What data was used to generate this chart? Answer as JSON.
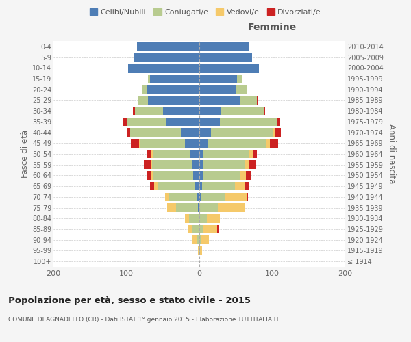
{
  "age_groups": [
    "100+",
    "95-99",
    "90-94",
    "85-89",
    "80-84",
    "75-79",
    "70-74",
    "65-69",
    "60-64",
    "55-59",
    "50-54",
    "45-49",
    "40-44",
    "35-39",
    "30-34",
    "25-29",
    "20-24",
    "15-19",
    "10-14",
    "5-9",
    "0-4"
  ],
  "birth_years": [
    "≤ 1914",
    "1915-1919",
    "1920-1924",
    "1925-1929",
    "1930-1934",
    "1935-1939",
    "1940-1944",
    "1945-1949",
    "1950-1954",
    "1955-1959",
    "1960-1964",
    "1965-1969",
    "1970-1974",
    "1975-1979",
    "1980-1984",
    "1985-1989",
    "1990-1994",
    "1995-1999",
    "2000-2004",
    "2005-2009",
    "2010-2014"
  ],
  "male": {
    "celibi": [
      0,
      0,
      0,
      0,
      0,
      2,
      3,
      7,
      8,
      10,
      12,
      20,
      25,
      45,
      50,
      70,
      72,
      68,
      98,
      90,
      85
    ],
    "coniugati": [
      0,
      1,
      4,
      9,
      14,
      30,
      38,
      50,
      55,
      55,
      52,
      62,
      70,
      55,
      38,
      14,
      7,
      2,
      0,
      0,
      0
    ],
    "vedovi": [
      0,
      1,
      5,
      7,
      6,
      12,
      6,
      5,
      3,
      2,
      2,
      1,
      0,
      0,
      0,
      0,
      0,
      0,
      0,
      0,
      0
    ],
    "divorziati": [
      0,
      0,
      0,
      0,
      0,
      0,
      0,
      6,
      6,
      9,
      6,
      11,
      5,
      5,
      3,
      0,
      0,
      0,
      0,
      0,
      0
    ]
  },
  "female": {
    "nubili": [
      0,
      0,
      0,
      0,
      0,
      0,
      2,
      4,
      5,
      5,
      6,
      12,
      16,
      28,
      30,
      55,
      50,
      52,
      82,
      72,
      68
    ],
    "coniugate": [
      0,
      1,
      3,
      6,
      10,
      25,
      33,
      45,
      50,
      58,
      62,
      80,
      85,
      78,
      58,
      24,
      16,
      6,
      0,
      0,
      0
    ],
    "vedove": [
      0,
      3,
      10,
      18,
      18,
      38,
      30,
      14,
      9,
      6,
      6,
      5,
      2,
      0,
      0,
      0,
      0,
      0,
      0,
      0,
      0
    ],
    "divorziate": [
      0,
      0,
      0,
      2,
      0,
      0,
      2,
      6,
      6,
      9,
      5,
      11,
      9,
      5,
      2,
      2,
      0,
      0,
      0,
      0,
      0
    ]
  },
  "colors": {
    "celibi": "#4e7db5",
    "coniugati": "#b8cb8f",
    "vedovi": "#f5c96a",
    "divorziati": "#cc2222"
  },
  "xlim": 200,
  "title": "Popolazione per età, sesso e stato civile - 2015",
  "subtitle": "COMUNE DI AGNADELLO (CR) - Dati ISTAT 1° gennaio 2015 - Elaborazione TUTTITALIA.IT",
  "ylabel_left": "Fasce di età",
  "ylabel_right": "Anni di nascita",
  "xlabel_femmine": "Femmine",
  "legend_labels": [
    "Celibi/Nubili",
    "Coniugati/e",
    "Vedovi/e",
    "Divorziati/e"
  ],
  "bg_color": "#f5f5f5",
  "plot_bg": "#ffffff"
}
